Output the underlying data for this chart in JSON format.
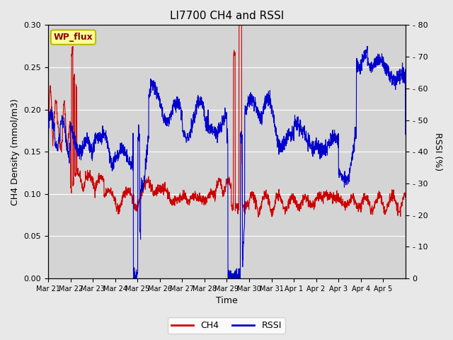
{
  "title": "LI7700 CH4 and RSSI",
  "ylabel_left": "CH4 Density (mmol/m3)",
  "ylabel_right": "RSSI (%)",
  "xlabel": "Time",
  "ylim_left": [
    0.0,
    0.3
  ],
  "ylim_right": [
    0,
    80
  ],
  "yticks_left": [
    0.0,
    0.05,
    0.1,
    0.15,
    0.2,
    0.25,
    0.3
  ],
  "yticks_right": [
    0,
    10,
    20,
    30,
    40,
    50,
    60,
    70,
    80
  ],
  "x_labels": [
    "Mar 21",
    "Mar 22",
    "Mar 23",
    "Mar 24",
    "Mar 25",
    "Mar 26",
    "Mar 27",
    "Mar 28",
    "Mar 29",
    "Mar 30",
    "Mar 31",
    "Apr 1",
    "Apr 2",
    "Apr 3",
    "Apr 4",
    "Apr 5"
  ],
  "annotation_text": "WP_flux",
  "annotation_bg": "#FFFF99",
  "annotation_border": "#BBBB00",
  "ch4_color": "#CC0000",
  "rssi_color": "#0000CC",
  "fig_bg_color": "#E8E8E8",
  "plot_bg_color": "#D4D4D4",
  "legend_ch4": "CH4",
  "legend_rssi": "RSSI"
}
